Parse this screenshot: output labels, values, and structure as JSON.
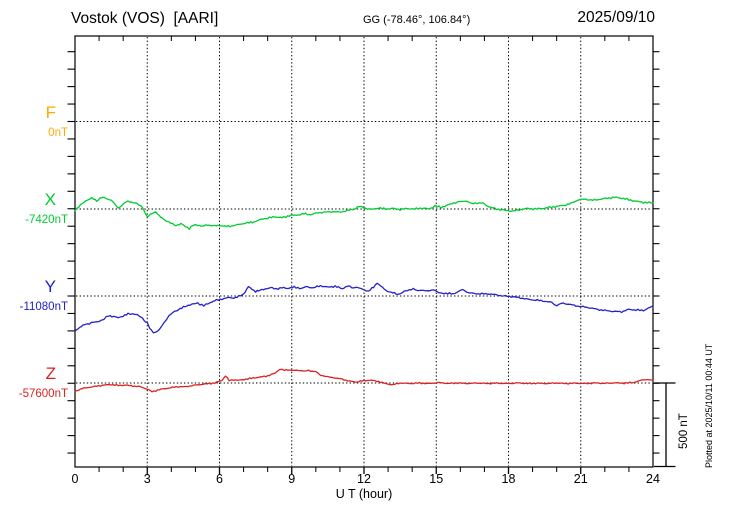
{
  "header": {
    "station_title": "Vostok (VOS)  [AARI]",
    "gg_coords": "GG (-78.46°, 106.84°)",
    "date": "2025/09/10"
  },
  "footer_note": "Plotted at 2025/10/11 00:44 UT",
  "scale_bar": {
    "label": "500 nT"
  },
  "chart_data": {
    "type": "line",
    "title": "Vostok (VOS) [AARI] magnetogram 2025/09/10",
    "xlabel": "U T (hour)",
    "x_range": [
      0,
      24
    ],
    "x_ticks": [
      0,
      3,
      6,
      9,
      12,
      15,
      18,
      21,
      24
    ],
    "x_minor_tick_step_hours": 1,
    "scale_bar_nT": 500,
    "grid": "dotted vertical lines every 3 h, dotted horizontal baseline per channel",
    "series": [
      {
        "name": "F",
        "color": "#FFAA00",
        "baseline_label": "0nT",
        "baseline_nT": 0,
        "points": []
      },
      {
        "name": "X",
        "color": "#00CC33",
        "baseline_label": "-7420nT",
        "baseline_nT": -7420,
        "points": [
          [
            0,
            -7426
          ],
          [
            0.3,
            -7390
          ],
          [
            0.5,
            -7367
          ],
          [
            0.7,
            -7358
          ],
          [
            0.9,
            -7373
          ],
          [
            1.1,
            -7352
          ],
          [
            1.3,
            -7361
          ],
          [
            1.5,
            -7367
          ],
          [
            1.8,
            -7417
          ],
          [
            2.0,
            -7390
          ],
          [
            2.2,
            -7376
          ],
          [
            2.5,
            -7385
          ],
          [
            2.8,
            -7408
          ],
          [
            3.0,
            -7467
          ],
          [
            3.2,
            -7444
          ],
          [
            3.35,
            -7435
          ],
          [
            3.5,
            -7461
          ],
          [
            3.7,
            -7479
          ],
          [
            3.9,
            -7497
          ],
          [
            4.2,
            -7514
          ],
          [
            4.4,
            -7506
          ],
          [
            4.6,
            -7520
          ],
          [
            4.75,
            -7532
          ],
          [
            4.9,
            -7514
          ],
          [
            5.1,
            -7511
          ],
          [
            5.3,
            -7520
          ],
          [
            5.5,
            -7511
          ],
          [
            5.8,
            -7517
          ],
          [
            6.0,
            -7514
          ],
          [
            6.3,
            -7520
          ],
          [
            6.5,
            -7517
          ],
          [
            6.8,
            -7509
          ],
          [
            7.0,
            -7503
          ],
          [
            7.3,
            -7497
          ],
          [
            7.5,
            -7491
          ],
          [
            7.8,
            -7476
          ],
          [
            8.0,
            -7473
          ],
          [
            8.3,
            -7464
          ],
          [
            8.6,
            -7470
          ],
          [
            8.9,
            -7458
          ],
          [
            9.2,
            -7455
          ],
          [
            9.5,
            -7447
          ],
          [
            9.8,
            -7452
          ],
          [
            10.1,
            -7441
          ],
          [
            10.4,
            -7438
          ],
          [
            10.7,
            -7435
          ],
          [
            11.0,
            -7438
          ],
          [
            11.3,
            -7429
          ],
          [
            11.6,
            -7420
          ],
          [
            11.8,
            -7405
          ],
          [
            12.0,
            -7414
          ],
          [
            12.3,
            -7423
          ],
          [
            12.6,
            -7414
          ],
          [
            12.9,
            -7420
          ],
          [
            13.2,
            -7417
          ],
          [
            13.5,
            -7423
          ],
          [
            13.8,
            -7417
          ],
          [
            14.1,
            -7420
          ],
          [
            14.4,
            -7414
          ],
          [
            14.7,
            -7420
          ],
          [
            14.95,
            -7402
          ],
          [
            15.2,
            -7411
          ],
          [
            15.5,
            -7396
          ],
          [
            15.8,
            -7382
          ],
          [
            16.0,
            -7379
          ],
          [
            16.25,
            -7373
          ],
          [
            16.45,
            -7390
          ],
          [
            16.7,
            -7385
          ],
          [
            16.95,
            -7388
          ],
          [
            17.2,
            -7408
          ],
          [
            17.5,
            -7420
          ],
          [
            17.9,
            -7429
          ],
          [
            18.2,
            -7432
          ],
          [
            18.5,
            -7423
          ],
          [
            18.8,
            -7417
          ],
          [
            19.1,
            -7420
          ],
          [
            19.4,
            -7417
          ],
          [
            19.7,
            -7411
          ],
          [
            20.0,
            -7405
          ],
          [
            20.3,
            -7399
          ],
          [
            20.6,
            -7388
          ],
          [
            20.9,
            -7367
          ],
          [
            21.2,
            -7364
          ],
          [
            21.5,
            -7370
          ],
          [
            21.8,
            -7364
          ],
          [
            22.1,
            -7358
          ],
          [
            22.4,
            -7353
          ],
          [
            22.7,
            -7358
          ],
          [
            23.0,
            -7367
          ],
          [
            23.3,
            -7376
          ],
          [
            23.6,
            -7382
          ],
          [
            24.0,
            -7385
          ]
        ]
      },
      {
        "name": "Y",
        "color": "#2222CC",
        "baseline_label": "-11080nT",
        "baseline_nT": -11080,
        "points": [
          [
            0,
            -11278
          ],
          [
            0.2,
            -11260
          ],
          [
            0.4,
            -11245
          ],
          [
            0.6,
            -11236
          ],
          [
            0.8,
            -11230
          ],
          [
            1.0,
            -11225
          ],
          [
            1.2,
            -11213
          ],
          [
            1.4,
            -11192
          ],
          [
            1.6,
            -11198
          ],
          [
            1.8,
            -11204
          ],
          [
            2.0,
            -11195
          ],
          [
            2.2,
            -11183
          ],
          [
            2.4,
            -11181
          ],
          [
            2.6,
            -11189
          ],
          [
            2.8,
            -11207
          ],
          [
            3.0,
            -11236
          ],
          [
            3.1,
            -11266
          ],
          [
            3.25,
            -11289
          ],
          [
            3.4,
            -11284
          ],
          [
            3.55,
            -11266
          ],
          [
            3.7,
            -11230
          ],
          [
            3.9,
            -11195
          ],
          [
            4.1,
            -11171
          ],
          [
            4.3,
            -11157
          ],
          [
            4.5,
            -11145
          ],
          [
            4.7,
            -11133
          ],
          [
            4.9,
            -11126
          ],
          [
            5.1,
            -11121
          ],
          [
            5.35,
            -11136
          ],
          [
            5.6,
            -11118
          ],
          [
            5.8,
            -11107
          ],
          [
            6.1,
            -11097
          ],
          [
            6.4,
            -11089
          ],
          [
            6.6,
            -11092
          ],
          [
            6.8,
            -11083
          ],
          [
            7.0,
            -11068
          ],
          [
            7.2,
            -11027
          ],
          [
            7.35,
            -11042
          ],
          [
            7.5,
            -11053
          ],
          [
            7.7,
            -11048
          ],
          [
            7.9,
            -11039
          ],
          [
            8.1,
            -11033
          ],
          [
            8.35,
            -11039
          ],
          [
            8.6,
            -11033
          ],
          [
            8.8,
            -11036
          ],
          [
            9.1,
            -11030
          ],
          [
            9.4,
            -11036
          ],
          [
            9.6,
            -11027
          ],
          [
            9.9,
            -11033
          ],
          [
            10.2,
            -11021
          ],
          [
            10.5,
            -11030
          ],
          [
            10.8,
            -11024
          ],
          [
            11.1,
            -11038
          ],
          [
            11.3,
            -11023
          ],
          [
            11.5,
            -11032
          ],
          [
            11.7,
            -11030
          ],
          [
            12.0,
            -11045
          ],
          [
            12.2,
            -11051
          ],
          [
            12.4,
            -11030
          ],
          [
            12.55,
            -11004
          ],
          [
            12.7,
            -11024
          ],
          [
            12.9,
            -11048
          ],
          [
            13.2,
            -11062
          ],
          [
            13.4,
            -11071
          ],
          [
            13.6,
            -11059
          ],
          [
            13.8,
            -11048
          ],
          [
            14.05,
            -11038
          ],
          [
            14.2,
            -11051
          ],
          [
            14.4,
            -11045
          ],
          [
            14.65,
            -11053
          ],
          [
            14.9,
            -11042
          ],
          [
            15.1,
            -11063
          ],
          [
            15.4,
            -11065
          ],
          [
            15.7,
            -11068
          ],
          [
            16.1,
            -11043
          ],
          [
            16.35,
            -11062
          ],
          [
            16.6,
            -11066
          ],
          [
            16.9,
            -11068
          ],
          [
            17.2,
            -11068
          ],
          [
            17.5,
            -11074
          ],
          [
            17.8,
            -11080
          ],
          [
            18.1,
            -11083
          ],
          [
            18.5,
            -11091
          ],
          [
            18.9,
            -11101
          ],
          [
            19.2,
            -11104
          ],
          [
            19.5,
            -11110
          ],
          [
            19.8,
            -11117
          ],
          [
            20.0,
            -11136
          ],
          [
            20.2,
            -11121
          ],
          [
            20.5,
            -11127
          ],
          [
            20.8,
            -11136
          ],
          [
            21.1,
            -11142
          ],
          [
            21.4,
            -11148
          ],
          [
            21.7,
            -11157
          ],
          [
            22.0,
            -11163
          ],
          [
            22.4,
            -11169
          ],
          [
            22.7,
            -11170
          ],
          [
            23.0,
            -11157
          ],
          [
            23.3,
            -11160
          ],
          [
            23.6,
            -11163
          ],
          [
            23.8,
            -11151
          ],
          [
            24.0,
            -11136
          ]
        ]
      },
      {
        "name": "Z",
        "color": "#DD2222",
        "baseline_label": "-57600nT",
        "baseline_nT": -57600,
        "points": [
          [
            0,
            -57647
          ],
          [
            0.3,
            -57632
          ],
          [
            0.6,
            -57624
          ],
          [
            0.9,
            -57618
          ],
          [
            1.2,
            -57612
          ],
          [
            1.5,
            -57609
          ],
          [
            1.8,
            -57614
          ],
          [
            2.1,
            -57612
          ],
          [
            2.4,
            -57617
          ],
          [
            2.7,
            -57621
          ],
          [
            3.0,
            -57635
          ],
          [
            3.2,
            -57650
          ],
          [
            3.5,
            -57638
          ],
          [
            3.8,
            -57631
          ],
          [
            4.2,
            -57622
          ],
          [
            4.6,
            -57621
          ],
          [
            5.0,
            -57612
          ],
          [
            5.4,
            -57606
          ],
          [
            5.8,
            -57600
          ],
          [
            6.1,
            -57585
          ],
          [
            6.25,
            -57559
          ],
          [
            6.4,
            -57586
          ],
          [
            6.6,
            -57582
          ],
          [
            6.8,
            -57585
          ],
          [
            7.1,
            -57578
          ],
          [
            7.4,
            -57571
          ],
          [
            7.7,
            -57566
          ],
          [
            8.0,
            -57559
          ],
          [
            8.3,
            -57544
          ],
          [
            8.5,
            -57521
          ],
          [
            8.7,
            -57527
          ],
          [
            8.9,
            -57524
          ],
          [
            9.1,
            -57529
          ],
          [
            9.3,
            -57527
          ],
          [
            9.5,
            -57532
          ],
          [
            9.7,
            -57529
          ],
          [
            10.0,
            -57535
          ],
          [
            10.2,
            -57555
          ],
          [
            10.5,
            -57565
          ],
          [
            10.8,
            -57571
          ],
          [
            11.1,
            -57578
          ],
          [
            11.4,
            -57590
          ],
          [
            11.7,
            -57594
          ],
          [
            12.0,
            -57586
          ],
          [
            12.3,
            -57584
          ],
          [
            12.6,
            -57591
          ],
          [
            12.9,
            -57604
          ],
          [
            13.2,
            -57610
          ],
          [
            13.5,
            -57600
          ],
          [
            13.9,
            -57603
          ],
          [
            14.3,
            -57600
          ],
          [
            14.7,
            -57603
          ],
          [
            15.1,
            -57597
          ],
          [
            15.5,
            -57603
          ],
          [
            15.9,
            -57600
          ],
          [
            16.3,
            -57603
          ],
          [
            16.7,
            -57600
          ],
          [
            17.1,
            -57603
          ],
          [
            17.5,
            -57601
          ],
          [
            18.0,
            -57603
          ],
          [
            18.4,
            -57600
          ],
          [
            18.8,
            -57603
          ],
          [
            19.2,
            -57601
          ],
          [
            19.6,
            -57603
          ],
          [
            20.0,
            -57600
          ],
          [
            20.4,
            -57603
          ],
          [
            20.8,
            -57601
          ],
          [
            21.2,
            -57603
          ],
          [
            21.6,
            -57600
          ],
          [
            22.0,
            -57602
          ],
          [
            22.4,
            -57599
          ],
          [
            22.8,
            -57601
          ],
          [
            23.2,
            -57597
          ],
          [
            23.5,
            -57585
          ],
          [
            23.7,
            -57579
          ],
          [
            24.0,
            -57585
          ]
        ]
      }
    ]
  }
}
